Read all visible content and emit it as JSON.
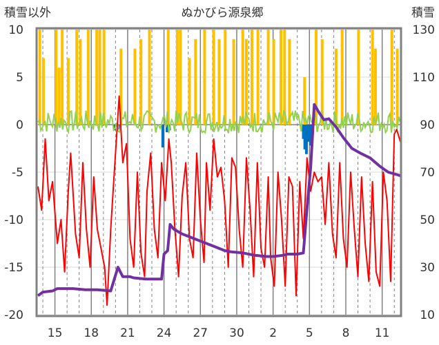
{
  "chart_data": {
    "type": "line",
    "title": "ぬかびら源泉郷",
    "ylabel_left": "積雪以外",
    "ylabel_right": "積雪",
    "ylim_left": [
      -20,
      10
    ],
    "ylim_right": [
      10,
      130
    ],
    "yticks_left": [
      10,
      5,
      0,
      -5,
      -10,
      -15,
      -20
    ],
    "yticks_right": [
      130,
      110,
      90,
      70,
      50,
      30,
      10
    ],
    "xtick_labels": [
      "15",
      "18",
      "21",
      "24",
      "27",
      "30",
      "2",
      "5",
      "8",
      "11"
    ],
    "x_start_day": 13.6,
    "x_end_day": 43.5,
    "xtick_days": [
      15,
      18,
      21,
      24,
      27,
      30,
      33,
      36,
      39,
      42
    ],
    "grid": true,
    "colors": {
      "temperature": "#ff0000",
      "snow_depth": "#7030a0",
      "precipitation": "#ffc000",
      "wind": "#92d050",
      "snowfall_negative": "#0070c0",
      "frame": "#808080",
      "grid": "#808080"
    },
    "series": [
      {
        "axis": "left",
        "color": "#ff0000",
        "kind": "line",
        "points": [
          [
            13.6,
            -6.5
          ],
          [
            13.9,
            -9.0
          ],
          [
            14.2,
            -1.5
          ],
          [
            14.5,
            -8.0
          ],
          [
            14.8,
            -6.0
          ],
          [
            15.2,
            -12.5
          ],
          [
            15.5,
            -10.0
          ],
          [
            15.8,
            -15.5
          ],
          [
            16.1,
            -7.0
          ],
          [
            16.3,
            -3.0
          ],
          [
            16.7,
            -11.5
          ],
          [
            17.0,
            -14.0
          ],
          [
            17.3,
            -4.0
          ],
          [
            17.6,
            -11.0
          ],
          [
            17.9,
            -15.0
          ],
          [
            18.2,
            -5.5
          ],
          [
            18.5,
            -11.0
          ],
          [
            18.8,
            -13.0
          ],
          [
            19.1,
            -15.0
          ],
          [
            19.3,
            -19.0
          ],
          [
            19.6,
            -11.0
          ],
          [
            19.9,
            -5.0
          ],
          [
            20.2,
            1.0
          ],
          [
            20.3,
            3.0
          ],
          [
            20.6,
            -4.0
          ],
          [
            20.9,
            -2.0
          ],
          [
            21.2,
            -12.0
          ],
          [
            21.5,
            -15.0
          ],
          [
            21.8,
            -5.0
          ],
          [
            22.1,
            -13.5
          ],
          [
            22.4,
            -16.0
          ],
          [
            22.6,
            -7.0
          ],
          [
            22.9,
            -3.0
          ],
          [
            23.2,
            -11.0
          ],
          [
            23.5,
            -14.0
          ],
          [
            23.8,
            -4.0
          ],
          [
            24.1,
            -8.0
          ],
          [
            24.4,
            -1.5
          ],
          [
            24.6,
            -4.0
          ],
          [
            24.9,
            -11.0
          ],
          [
            25.2,
            -16.0
          ],
          [
            25.5,
            -7.5
          ],
          [
            25.8,
            -4.0
          ],
          [
            26.1,
            -12.0
          ],
          [
            26.4,
            -14.0
          ],
          [
            26.7,
            -3.0
          ],
          [
            27.0,
            -10.0
          ],
          [
            27.3,
            -14.5
          ],
          [
            27.5,
            -4.0
          ],
          [
            27.8,
            -9.0
          ],
          [
            28.1,
            -1.5
          ],
          [
            28.4,
            -5.5
          ],
          [
            28.7,
            -4.5
          ],
          [
            29.0,
            -8.0
          ],
          [
            29.3,
            -15.0
          ],
          [
            29.6,
            -3.5
          ],
          [
            29.9,
            -4.5
          ],
          [
            30.2,
            -11.0
          ],
          [
            30.5,
            -15.0
          ],
          [
            30.8,
            -3.5
          ],
          [
            31.1,
            -9.0
          ],
          [
            31.4,
            -16.0
          ],
          [
            31.7,
            -4.0
          ],
          [
            32.0,
            -13.0
          ],
          [
            32.3,
            -15.0
          ],
          [
            32.6,
            -5.5
          ],
          [
            32.8,
            -14.0
          ],
          [
            33.1,
            -17.0
          ],
          [
            33.4,
            -5.0
          ],
          [
            33.7,
            -10.0
          ],
          [
            34.0,
            -17.0
          ],
          [
            34.3,
            -5.5
          ],
          [
            34.6,
            -6.5
          ],
          [
            34.9,
            -18.0
          ],
          [
            35.2,
            -6.0
          ],
          [
            35.5,
            -12.0
          ],
          [
            35.8,
            -3.5
          ],
          [
            36.1,
            -7.0
          ],
          [
            36.4,
            -5.0
          ],
          [
            36.7,
            -6.0
          ],
          [
            37.0,
            -5.5
          ],
          [
            37.3,
            -10.5
          ],
          [
            37.6,
            -4.0
          ],
          [
            37.9,
            -11.5
          ],
          [
            38.2,
            -14.0
          ],
          [
            38.5,
            -4.0
          ],
          [
            38.8,
            -12.0
          ],
          [
            39.1,
            -15.0
          ],
          [
            39.4,
            -5.0
          ],
          [
            39.7,
            -11.0
          ],
          [
            40.0,
            -16.0
          ],
          [
            40.3,
            -5.5
          ],
          [
            40.6,
            -12.5
          ],
          [
            40.9,
            -16.5
          ],
          [
            41.2,
            -6.0
          ],
          [
            41.5,
            -15.5
          ],
          [
            41.8,
            -17.0
          ],
          [
            42.1,
            -5.0
          ],
          [
            42.4,
            -8.0
          ],
          [
            42.7,
            -16.5
          ],
          [
            43.0,
            -1.0
          ],
          [
            43.2,
            -0.5
          ],
          [
            43.5,
            -1.8
          ]
        ]
      },
      {
        "axis": "right",
        "color": "#7030a0",
        "kind": "line",
        "points": [
          [
            13.6,
            18.0
          ],
          [
            14.0,
            19.5
          ],
          [
            14.8,
            20.0
          ],
          [
            15.2,
            21.0
          ],
          [
            16.5,
            21.0
          ],
          [
            17.5,
            20.5
          ],
          [
            18.5,
            20.5
          ],
          [
            19.6,
            20.0
          ],
          [
            20.2,
            30.0
          ],
          [
            20.6,
            26.0
          ],
          [
            21.2,
            26.0
          ],
          [
            21.5,
            25.5
          ],
          [
            22.5,
            25.0
          ],
          [
            23.3,
            25.0
          ],
          [
            23.8,
            25.0
          ],
          [
            24.0,
            35.5
          ],
          [
            24.3,
            37.0
          ],
          [
            24.5,
            48.0
          ],
          [
            24.8,
            46.0
          ],
          [
            25.5,
            44.0
          ],
          [
            26.5,
            42.0
          ],
          [
            27.5,
            40.0
          ],
          [
            28.5,
            38.0
          ],
          [
            29.0,
            37.0
          ],
          [
            29.5,
            36.5
          ],
          [
            30.5,
            36.0
          ],
          [
            31.5,
            35.0
          ],
          [
            32.5,
            34.5
          ],
          [
            33.0,
            34.5
          ],
          [
            33.8,
            35.0
          ],
          [
            34.2,
            35.5
          ],
          [
            35.0,
            35.5
          ],
          [
            35.5,
            36.0
          ],
          [
            35.8,
            55.0
          ],
          [
            36.1,
            72.0
          ],
          [
            36.4,
            98.5
          ],
          [
            36.8,
            95.0
          ],
          [
            37.2,
            92.0
          ],
          [
            37.6,
            92.5
          ],
          [
            38.2,
            89.0
          ],
          [
            38.8,
            84.5
          ],
          [
            39.5,
            80.0
          ],
          [
            40.2,
            78.0
          ],
          [
            41.0,
            76.0
          ],
          [
            41.8,
            72.5
          ],
          [
            42.5,
            70.0
          ],
          [
            43.2,
            69.0
          ],
          [
            43.5,
            68.5
          ]
        ]
      },
      {
        "axis": "left",
        "color": "#92d050",
        "kind": "noise",
        "center": 0.3,
        "amplitude": 1.2,
        "points": [
          [
            13.6,
            0.2
          ],
          [
            43.5,
            0.5
          ]
        ]
      },
      {
        "axis": "left",
        "color": "#ffc000",
        "kind": "bars",
        "base": 0,
        "points": [
          [
            13.75,
            10
          ],
          [
            14.05,
            7
          ],
          [
            15.1,
            10
          ],
          [
            15.35,
            6
          ],
          [
            15.6,
            10
          ],
          [
            16.1,
            7
          ],
          [
            16.8,
            10
          ],
          [
            17.1,
            9
          ],
          [
            17.75,
            10
          ],
          [
            18.45,
            10
          ],
          [
            18.7,
            10
          ],
          [
            19.05,
            10
          ],
          [
            20.45,
            8
          ],
          [
            21.6,
            8
          ],
          [
            22.1,
            9
          ],
          [
            22.8,
            10
          ],
          [
            24.35,
            10
          ],
          [
            25.1,
            10
          ],
          [
            25.35,
            10
          ],
          [
            26.1,
            7
          ],
          [
            26.6,
            9
          ],
          [
            27.35,
            10
          ],
          [
            28.1,
            10
          ],
          [
            28.55,
            9
          ],
          [
            29.05,
            10
          ],
          [
            29.75,
            9
          ],
          [
            30.5,
            10
          ],
          [
            30.8,
            9
          ],
          [
            31.25,
            10
          ],
          [
            31.75,
            10
          ],
          [
            32.6,
            10
          ],
          [
            33.05,
            9
          ],
          [
            33.65,
            10
          ],
          [
            33.95,
            10
          ],
          [
            34.35,
            9
          ],
          [
            35.6,
            5
          ],
          [
            36.55,
            10
          ],
          [
            37.05,
            9
          ],
          [
            38.2,
            8
          ],
          [
            38.7,
            10
          ],
          [
            40.05,
            10
          ],
          [
            41.2,
            10
          ],
          [
            41.45,
            8
          ],
          [
            42.8,
            10
          ],
          [
            43.25,
            8
          ]
        ]
      },
      {
        "axis": "left",
        "color": "#0070c0",
        "kind": "bars",
        "base": 0,
        "points": [
          [
            19.9,
            -0.6
          ],
          [
            20.35,
            -0.5
          ],
          [
            23.9,
            -2.4
          ],
          [
            24.25,
            -0.8
          ],
          [
            24.45,
            -0.6
          ],
          [
            35.5,
            -1.5
          ],
          [
            35.62,
            -2.6
          ],
          [
            35.75,
            -3.1
          ],
          [
            35.88,
            -1.8
          ],
          [
            36.0,
            -1.2
          ],
          [
            36.1,
            -2.2
          ]
        ]
      }
    ]
  }
}
